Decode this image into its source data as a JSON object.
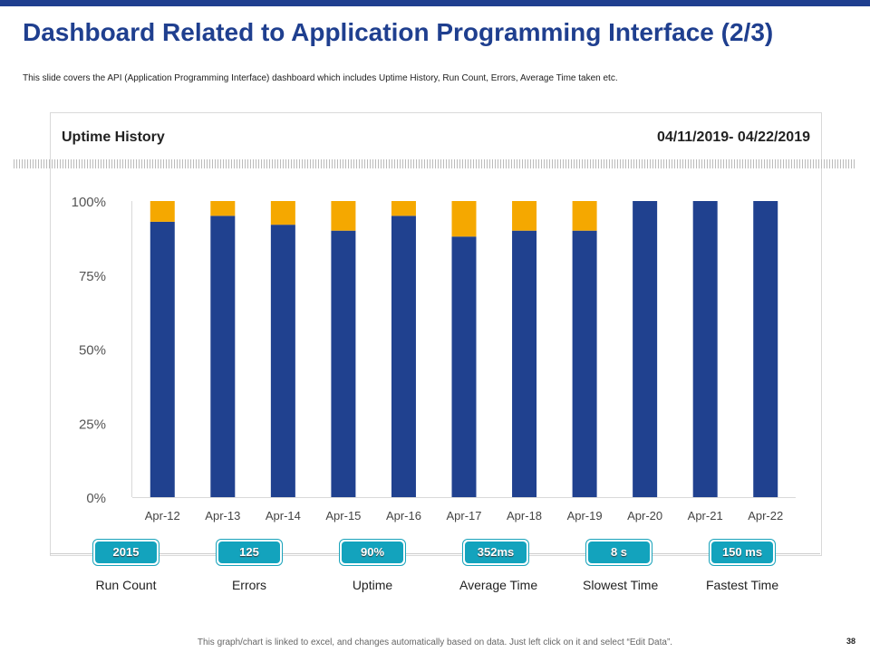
{
  "title": "Dashboard Related to Application Programming Interface (2/3)",
  "subtitle": "This slide covers the API (Application Programming  Interface) dashboard which includes Uptime History, Run Count, Errors, Average Time taken etc.",
  "chart_header": {
    "title": "Uptime History",
    "date_range": "04/11/2019- 04/22/2019"
  },
  "chart_data": {
    "type": "bar",
    "stacked": true,
    "title": "Uptime History",
    "categories": [
      "Apr-12",
      "Apr-13",
      "Apr-14",
      "Apr-15",
      "Apr-16",
      "Apr-17",
      "Apr-18",
      "Apr-19",
      "Apr-20",
      "Apr-21",
      "Apr-22"
    ],
    "series": [
      {
        "values": [
          93,
          95,
          92,
          90,
          95,
          88,
          90,
          90,
          100,
          100,
          100
        ],
        "color": "#20418f"
      },
      {
        "values": [
          7,
          5,
          8,
          10,
          5,
          12,
          10,
          10,
          0,
          0,
          0
        ],
        "color": "#f5a800"
      }
    ],
    "yticks": [
      "0%",
      "25%",
      "50%",
      "75%",
      "100%"
    ],
    "ylim": [
      0,
      100
    ],
    "grid": false
  },
  "kpis": [
    {
      "value": "2015",
      "label": "Run Count"
    },
    {
      "value": "125",
      "label": "Errors"
    },
    {
      "value": "90%",
      "label": "Uptime"
    },
    {
      "value": "352ms",
      "label": "Average Time"
    },
    {
      "value": "8 s",
      "label": "Slowest Time"
    },
    {
      "value": "150 ms",
      "label": "Fastest Time"
    }
  ],
  "footer": "This graph/chart is linked to excel, and changes automatically based on data. Just left click on it and select “Edit Data”.",
  "page_number": "38"
}
